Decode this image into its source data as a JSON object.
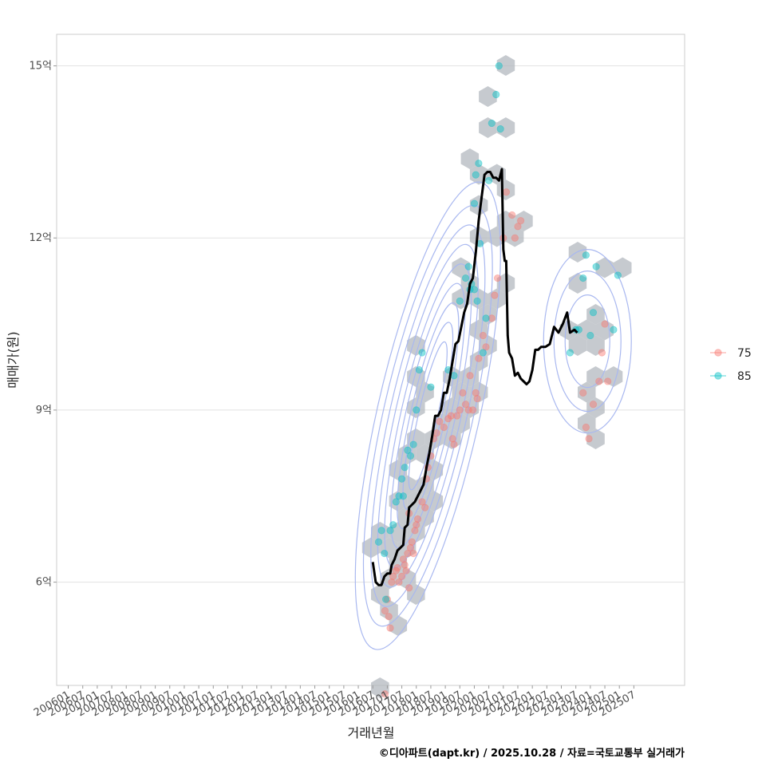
{
  "chart_data": {
    "type": "scatter",
    "title": "",
    "xlabel": "거래년월",
    "ylabel": "매매가(원)",
    "caption": "©디아파트(dapt.kr) / 2025.10.28 / 자료=국토교통부 실거래가",
    "x_unit": "year (decimal)",
    "xlim": [
      2005.6,
      2027.25
    ],
    "ylim": [
      4.2,
      15.55
    ],
    "y_ticks": [
      {
        "value": 6,
        "label": "6억"
      },
      {
        "value": 9,
        "label": "9억"
      },
      {
        "value": 12,
        "label": "12억"
      },
      {
        "value": 15,
        "label": "15억"
      }
    ],
    "x_ticks": [
      "200601",
      "200607",
      "200701",
      "200707",
      "200801",
      "200807",
      "200901",
      "200907",
      "201001",
      "201007",
      "201101",
      "201107",
      "201201",
      "201207",
      "201301",
      "201307",
      "201401",
      "201407",
      "201501",
      "201507",
      "201601",
      "201607",
      "201701",
      "201707",
      "201801",
      "201807",
      "201901",
      "201907",
      "202001",
      "202007",
      "202101",
      "202107",
      "202201",
      "202207",
      "202301",
      "202307",
      "202401",
      "202407",
      "202501",
      "202507"
    ],
    "legend": [
      {
        "name": "75",
        "color": "#F8766D"
      },
      {
        "name": "85",
        "color": "#00BFC4"
      }
    ],
    "series": [
      {
        "name": "75",
        "color": "#F8766D",
        "points": [
          [
            2016.92,
            5.5
          ],
          [
            2017.0,
            5.7
          ],
          [
            2017.05,
            5.4
          ],
          [
            2017.1,
            5.2
          ],
          [
            2017.15,
            6.0
          ],
          [
            2017.2,
            6.1
          ],
          [
            2017.3,
            6.2
          ],
          [
            2017.35,
            6.25
          ],
          [
            2017.4,
            6.0
          ],
          [
            2017.5,
            6.1
          ],
          [
            2017.55,
            6.4
          ],
          [
            2017.6,
            6.3
          ],
          [
            2017.65,
            6.2
          ],
          [
            2017.7,
            6.5
          ],
          [
            2017.75,
            5.9
          ],
          [
            2017.8,
            6.6
          ],
          [
            2017.85,
            6.7
          ],
          [
            2017.9,
            6.5
          ],
          [
            2017.95,
            6.9
          ],
          [
            2018.0,
            7.0
          ],
          [
            2018.05,
            7.1
          ],
          [
            2017.75,
            7.2
          ],
          [
            2018.2,
            7.4
          ],
          [
            2018.3,
            7.3
          ],
          [
            2018.35,
            7.8
          ],
          [
            2018.4,
            8.0
          ],
          [
            2018.5,
            8.2
          ],
          [
            2018.6,
            8.5
          ],
          [
            2018.7,
            8.6
          ],
          [
            2018.8,
            8.8
          ],
          [
            2018.95,
            8.7
          ],
          [
            2019.1,
            8.85
          ],
          [
            2019.2,
            8.9
          ],
          [
            2019.25,
            8.5
          ],
          [
            2019.3,
            8.4
          ],
          [
            2019.4,
            8.9
          ],
          [
            2019.5,
            9.0
          ],
          [
            2019.6,
            9.3
          ],
          [
            2019.7,
            9.1
          ],
          [
            2019.8,
            9.0
          ],
          [
            2019.85,
            9.6
          ],
          [
            2019.95,
            9.0
          ],
          [
            2020.05,
            9.3
          ],
          [
            2020.1,
            9.2
          ],
          [
            2020.15,
            9.9
          ],
          [
            2020.3,
            10.3
          ],
          [
            2020.4,
            10.1
          ],
          [
            2020.6,
            10.6
          ],
          [
            2020.7,
            11.0
          ],
          [
            2020.8,
            11.3
          ],
          [
            2021.0,
            12.0
          ],
          [
            2021.1,
            12.8
          ],
          [
            2021.3,
            12.4
          ],
          [
            2021.4,
            12.0
          ],
          [
            2021.5,
            12.2
          ],
          [
            2021.6,
            12.3
          ],
          [
            2016.92,
            4.05
          ],
          [
            2023.75,
            9.3
          ],
          [
            2023.85,
            8.7
          ],
          [
            2023.95,
            8.5
          ],
          [
            2024.1,
            9.1
          ],
          [
            2024.3,
            9.5
          ],
          [
            2024.4,
            10.0
          ],
          [
            2024.5,
            10.5
          ],
          [
            2024.6,
            9.5
          ]
        ]
      },
      {
        "name": "85",
        "color": "#00BFC4",
        "points": [
          [
            2016.7,
            6.7
          ],
          [
            2016.8,
            6.9
          ],
          [
            2016.9,
            6.5
          ],
          [
            2016.95,
            5.7
          ],
          [
            2017.1,
            6.9
          ],
          [
            2017.2,
            7.0
          ],
          [
            2017.3,
            7.4
          ],
          [
            2017.4,
            7.5
          ],
          [
            2017.5,
            7.8
          ],
          [
            2017.6,
            8.0
          ],
          [
            2017.7,
            8.3
          ],
          [
            2017.8,
            8.2
          ],
          [
            2017.9,
            8.4
          ],
          [
            2017.55,
            7.5
          ],
          [
            2018.0,
            9.0
          ],
          [
            2018.1,
            9.7
          ],
          [
            2018.2,
            10.0
          ],
          [
            2018.5,
            9.4
          ],
          [
            2019.1,
            9.7
          ],
          [
            2019.3,
            9.6
          ],
          [
            2019.5,
            10.9
          ],
          [
            2019.7,
            11.3
          ],
          [
            2019.8,
            11.5
          ],
          [
            2019.85,
            11.1
          ],
          [
            2019.9,
            11.2
          ],
          [
            2020.0,
            11.1
          ],
          [
            2020.1,
            10.9
          ],
          [
            2020.2,
            11.9
          ],
          [
            2020.0,
            12.6
          ],
          [
            2020.05,
            13.1
          ],
          [
            2020.15,
            13.3
          ],
          [
            2020.5,
            13.0
          ],
          [
            2020.6,
            14.0
          ],
          [
            2020.75,
            14.5
          ],
          [
            2020.9,
            13.9
          ],
          [
            2020.85,
            15.0
          ],
          [
            2020.3,
            10.0
          ],
          [
            2020.4,
            10.6
          ],
          [
            2023.3,
            10.0
          ],
          [
            2023.5,
            10.4
          ],
          [
            2023.6,
            10.4
          ],
          [
            2023.75,
            11.3
          ],
          [
            2023.85,
            11.7
          ],
          [
            2024.0,
            10.3
          ],
          [
            2024.1,
            10.7
          ],
          [
            2024.2,
            11.5
          ],
          [
            2024.95,
            11.35
          ],
          [
            2024.8,
            10.4
          ]
        ]
      }
    ],
    "trend_line": {
      "name": "moving average",
      "color": "#000000",
      "points": [
        [
          2016.5,
          6.35
        ],
        [
          2016.6,
          6.0
        ],
        [
          2016.7,
          5.95
        ],
        [
          2016.8,
          5.95
        ],
        [
          2016.9,
          6.1
        ],
        [
          2017.0,
          6.15
        ],
        [
          2017.1,
          6.15
        ],
        [
          2017.15,
          6.3
        ],
        [
          2017.25,
          6.4
        ],
        [
          2017.35,
          6.55
        ],
        [
          2017.45,
          6.6
        ],
        [
          2017.55,
          6.65
        ],
        [
          2017.6,
          6.95
        ],
        [
          2017.7,
          7.0
        ],
        [
          2017.75,
          7.3
        ],
        [
          2017.85,
          7.35
        ],
        [
          2017.95,
          7.4
        ],
        [
          2018.05,
          7.5
        ],
        [
          2018.15,
          7.6
        ],
        [
          2018.25,
          7.7
        ],
        [
          2018.35,
          8.0
        ],
        [
          2018.45,
          8.25
        ],
        [
          2018.55,
          8.55
        ],
        [
          2018.65,
          8.9
        ],
        [
          2018.75,
          8.9
        ],
        [
          2018.85,
          9.0
        ],
        [
          2018.95,
          9.3
        ],
        [
          2019.05,
          9.3
        ],
        [
          2019.15,
          9.55
        ],
        [
          2019.25,
          9.85
        ],
        [
          2019.35,
          10.15
        ],
        [
          2019.45,
          10.2
        ],
        [
          2019.55,
          10.45
        ],
        [
          2019.65,
          10.7
        ],
        [
          2019.75,
          10.85
        ],
        [
          2019.85,
          11.2
        ],
        [
          2019.95,
          11.3
        ],
        [
          2020.05,
          11.75
        ],
        [
          2020.15,
          12.3
        ],
        [
          2020.25,
          12.7
        ],
        [
          2020.35,
          13.1
        ],
        [
          2020.45,
          13.15
        ],
        [
          2020.55,
          13.15
        ],
        [
          2020.65,
          13.05
        ],
        [
          2020.75,
          13.05
        ],
        [
          2020.85,
          13.0
        ],
        [
          2020.95,
          13.2
        ],
        [
          2021.0,
          11.8
        ],
        [
          2021.05,
          11.6
        ],
        [
          2021.1,
          11.6
        ],
        [
          2021.15,
          10.3
        ],
        [
          2021.2,
          10.0
        ],
        [
          2021.3,
          9.9
        ],
        [
          2021.4,
          9.6
        ],
        [
          2021.5,
          9.65
        ],
        [
          2021.6,
          9.55
        ],
        [
          2021.7,
          9.5
        ],
        [
          2021.8,
          9.45
        ],
        [
          2021.9,
          9.5
        ],
        [
          2022.0,
          9.7
        ],
        [
          2022.1,
          10.05
        ],
        [
          2022.2,
          10.05
        ],
        [
          2022.3,
          10.1
        ],
        [
          2022.45,
          10.1
        ],
        [
          2022.6,
          10.15
        ],
        [
          2022.75,
          10.45
        ],
        [
          2022.9,
          10.35
        ],
        [
          2023.05,
          10.5
        ],
        [
          2023.2,
          10.7
        ],
        [
          2023.3,
          10.35
        ],
        [
          2023.45,
          10.4
        ],
        [
          2023.55,
          10.35
        ]
      ]
    }
  }
}
